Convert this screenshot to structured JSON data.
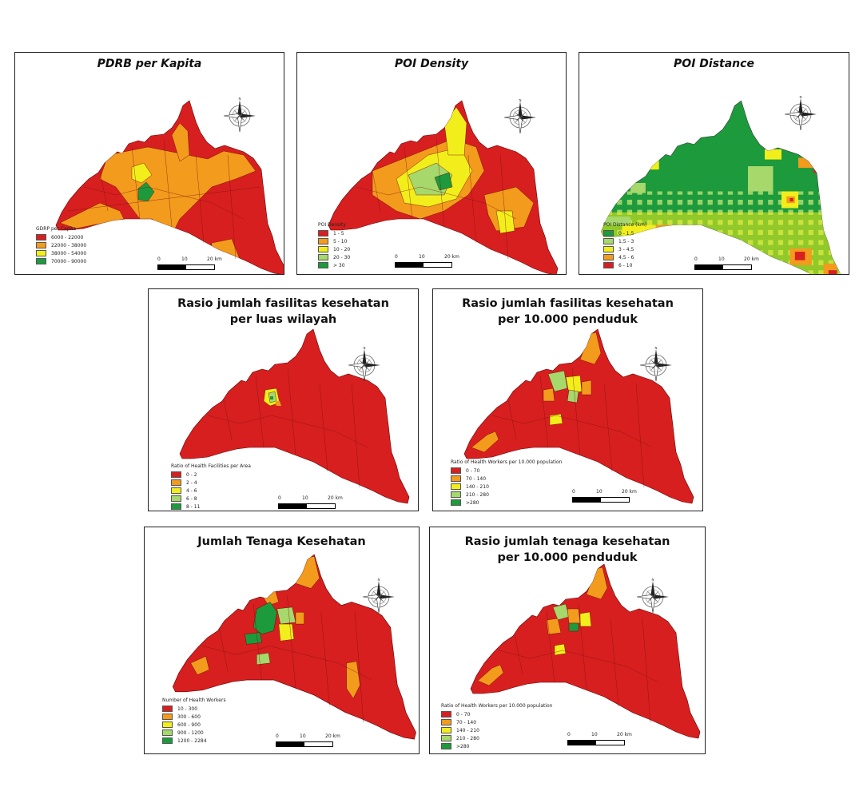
{
  "colors": {
    "red": "#d71f1f",
    "orange": "#f29b1d",
    "yellow": "#f2ee1c",
    "light_green": "#a6d86c",
    "green": "#1c9a3c"
  },
  "icons": {
    "compass": "north-arrow-compass-icon"
  },
  "panels": [
    {
      "id": "pdrb",
      "title_lines": [
        "PDRB per Kapita"
      ],
      "italic": true,
      "legend": {
        "title": "GDRP per Capita",
        "items": [
          {
            "label": "6000 - 22000",
            "color": "#d71f1f"
          },
          {
            "label": "22000 - 38000",
            "color": "#f29b1d"
          },
          {
            "label": "38000 - 54000",
            "color": "#f2ee1c"
          },
          {
            "label": "70000 - 90000",
            "color": "#1c9a3c"
          }
        ]
      },
      "scale": {
        "ticks": [
          "0",
          "10",
          "20 km"
        ]
      }
    },
    {
      "id": "poi-density",
      "title_lines": [
        "POI Density"
      ],
      "italic": true,
      "legend": {
        "title": "POI Density",
        "items": [
          {
            "label": "1 - 5",
            "color": "#d71f1f"
          },
          {
            "label": "5 - 10",
            "color": "#f29b1d"
          },
          {
            "label": "10 - 20",
            "color": "#f2ee1c"
          },
          {
            "label": "20 - 30",
            "color": "#a6d86c"
          },
          {
            "label": "> 30",
            "color": "#1c9a3c"
          }
        ]
      },
      "scale": {
        "ticks": [
          "0",
          "10",
          "20 km"
        ]
      }
    },
    {
      "id": "poi-distance",
      "title_lines": [
        "POI Distance"
      ],
      "italic": true,
      "legend": {
        "title": "POI Distance (km)",
        "items": [
          {
            "label": "0 - 1,5",
            "color": "#1c9a3c"
          },
          {
            "label": "1,5 - 3",
            "color": "#a6d86c"
          },
          {
            "label": "3 - 4,5",
            "color": "#f2ee1c"
          },
          {
            "label": "4,5 - 6",
            "color": "#f29b1d"
          },
          {
            "label": "6 - 10",
            "color": "#d71f1f"
          }
        ]
      },
      "scale": {
        "ticks": [
          "0",
          "10",
          "20 km"
        ]
      }
    },
    {
      "id": "ratio-area",
      "title_lines": [
        "Rasio jumlah fasilitas kesehatan",
        "per luas wilayah"
      ],
      "italic": false,
      "legend": {
        "title": "Ratio of Health Facilities per Area",
        "items": [
          {
            "label": "0 - 2",
            "color": "#d71f1f"
          },
          {
            "label": "2 - 4",
            "color": "#f29b1d"
          },
          {
            "label": "4 - 6",
            "color": "#f2ee1c"
          },
          {
            "label": "6 - 8",
            "color": "#a6d86c"
          },
          {
            "label": "8 - 11",
            "color": "#1c9a3c"
          }
        ]
      },
      "scale": {
        "ticks": [
          "0",
          "10",
          "20 km"
        ]
      }
    },
    {
      "id": "ratio-pop-facilities",
      "title_lines": [
        "Rasio jumlah fasilitas kesehatan",
        "per 10.000 penduduk"
      ],
      "italic": false,
      "legend": {
        "title": "Ratio of Health Workers per 10.000 population",
        "items": [
          {
            "label": "0 - 70",
            "color": "#d71f1f"
          },
          {
            "label": "70 - 140",
            "color": "#f29b1d"
          },
          {
            "label": "140 - 210",
            "color": "#f2ee1c"
          },
          {
            "label": "210 - 280",
            "color": "#a6d86c"
          },
          {
            "label": ">280",
            "color": "#1c9a3c"
          }
        ]
      },
      "scale": {
        "ticks": [
          "0",
          "10",
          "20 km"
        ]
      }
    },
    {
      "id": "workers",
      "title_lines": [
        "Jumlah Tenaga Kesehatan"
      ],
      "italic": false,
      "legend": {
        "title": "Number of Health Workers",
        "items": [
          {
            "label": "10 - 300",
            "color": "#d71f1f"
          },
          {
            "label": "300 - 600",
            "color": "#f29b1d"
          },
          {
            "label": "600 - 900",
            "color": "#f2ee1c"
          },
          {
            "label": "900 - 1200",
            "color": "#a6d86c"
          },
          {
            "label": "1200 - 2284",
            "color": "#1c9a3c"
          }
        ]
      },
      "scale": {
        "ticks": [
          "0",
          "10",
          "20 km"
        ]
      }
    },
    {
      "id": "ratio-workers",
      "title_lines": [
        "Rasio jumlah tenaga kesehatan",
        "per 10.000 penduduk"
      ],
      "italic": false,
      "legend": {
        "title": "Ratio of Health Workers per 10.000 population",
        "items": [
          {
            "label": "0 - 70",
            "color": "#d71f1f"
          },
          {
            "label": "70 - 140",
            "color": "#f29b1d"
          },
          {
            "label": "140 - 210",
            "color": "#f2ee1c"
          },
          {
            "label": "210 - 280",
            "color": "#a6d86c"
          },
          {
            "label": ">280",
            "color": "#1c9a3c"
          }
        ]
      },
      "scale": {
        "ticks": [
          "0",
          "10",
          "20 km"
        ]
      }
    }
  ]
}
